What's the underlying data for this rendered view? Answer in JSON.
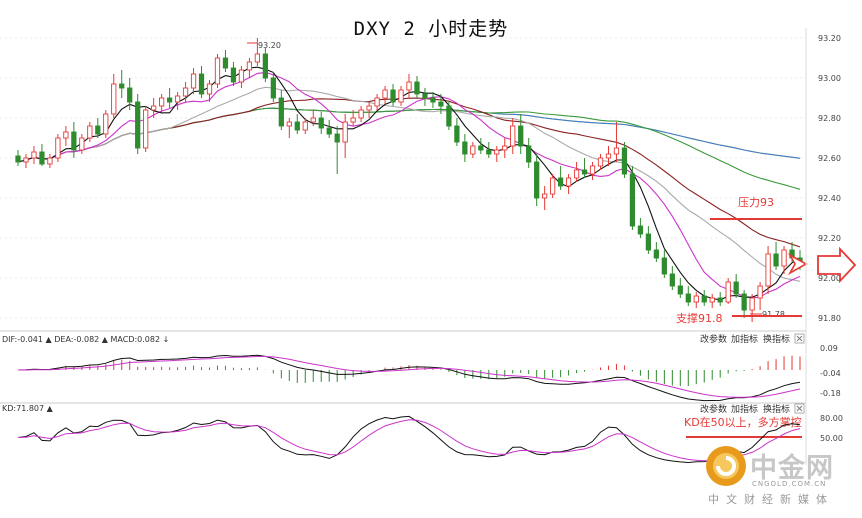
{
  "chart_data": {
    "title": "DXY 2 小时走势",
    "type": "candlestick",
    "price_axis": {
      "ticks": [
        "93.20",
        "93.00",
        "92.80",
        "92.60",
        "92.40",
        "92.20",
        "92.00",
        "91.80"
      ],
      "ylim": [
        91.75,
        93.25
      ]
    },
    "high_label": "93.20",
    "low_label": "91.78",
    "resistance": {
      "label": "压力93"
    },
    "support": {
      "label": "支撑91.8"
    },
    "candles": [
      [
        92.61,
        92.64,
        92.56,
        92.58
      ],
      [
        92.58,
        92.62,
        92.55,
        92.6
      ],
      [
        92.6,
        92.66,
        92.57,
        92.63
      ],
      [
        92.63,
        92.67,
        92.56,
        92.57
      ],
      [
        92.57,
        92.62,
        92.55,
        92.6
      ],
      [
        92.6,
        92.72,
        92.58,
        92.7
      ],
      [
        92.7,
        92.76,
        92.66,
        92.73
      ],
      [
        92.73,
        92.78,
        92.6,
        92.64
      ],
      [
        92.64,
        92.72,
        92.62,
        92.7
      ],
      [
        92.7,
        92.78,
        92.68,
        92.76
      ],
      [
        92.76,
        92.8,
        92.7,
        92.72
      ],
      [
        92.72,
        92.84,
        92.7,
        92.82
      ],
      [
        92.82,
        93.02,
        92.8,
        92.97
      ],
      [
        92.97,
        93.04,
        92.9,
        92.95
      ],
      [
        92.95,
        93.0,
        92.84,
        92.88
      ],
      [
        92.88,
        92.92,
        92.62,
        92.65
      ],
      [
        92.65,
        92.86,
        92.63,
        92.84
      ],
      [
        92.84,
        92.9,
        92.8,
        92.86
      ],
      [
        92.86,
        92.92,
        92.82,
        92.9
      ],
      [
        92.9,
        92.95,
        92.85,
        92.88
      ],
      [
        92.88,
        92.93,
        92.84,
        92.91
      ],
      [
        92.91,
        92.98,
        92.88,
        92.95
      ],
      [
        92.95,
        93.05,
        92.92,
        93.02
      ],
      [
        93.02,
        93.06,
        92.9,
        92.92
      ],
      [
        92.92,
        92.99,
        92.88,
        92.97
      ],
      [
        92.97,
        93.12,
        92.95,
        93.1
      ],
      [
        93.1,
        93.14,
        93.03,
        93.05
      ],
      [
        93.05,
        93.08,
        92.96,
        92.98
      ],
      [
        92.98,
        93.06,
        92.95,
        93.04
      ],
      [
        93.04,
        93.1,
        93.0,
        93.08
      ],
      [
        93.08,
        93.2,
        93.06,
        93.12
      ],
      [
        93.12,
        93.15,
        92.98,
        93.0
      ],
      [
        93.0,
        93.03,
        92.88,
        92.9
      ],
      [
        92.9,
        92.94,
        92.74,
        92.76
      ],
      [
        92.76,
        92.8,
        92.7,
        92.78
      ],
      [
        92.78,
        92.82,
        92.72,
        92.74
      ],
      [
        92.74,
        92.8,
        92.72,
        92.78
      ],
      [
        92.78,
        92.84,
        92.76,
        92.8
      ],
      [
        92.8,
        92.83,
        92.72,
        92.75
      ],
      [
        92.75,
        92.79,
        92.7,
        92.72
      ],
      [
        92.72,
        92.76,
        92.52,
        92.68
      ],
      [
        92.68,
        92.82,
        92.6,
        92.78
      ],
      [
        92.78,
        92.84,
        92.76,
        92.8
      ],
      [
        92.8,
        92.86,
        92.78,
        92.84
      ],
      [
        92.84,
        92.88,
        92.8,
        92.86
      ],
      [
        92.86,
        92.92,
        92.84,
        92.9
      ],
      [
        92.9,
        92.96,
        92.87,
        92.94
      ],
      [
        92.94,
        92.97,
        92.86,
        92.88
      ],
      [
        92.88,
        92.96,
        92.86,
        92.94
      ],
      [
        92.94,
        93.02,
        92.9,
        92.98
      ],
      [
        92.98,
        93.01,
        92.9,
        92.92
      ],
      [
        92.92,
        92.95,
        92.86,
        92.9
      ],
      [
        92.9,
        92.93,
        92.85,
        92.88
      ],
      [
        92.88,
        92.92,
        92.82,
        92.86
      ],
      [
        92.86,
        92.88,
        92.74,
        92.76
      ],
      [
        92.76,
        92.8,
        92.66,
        92.68
      ],
      [
        92.68,
        92.72,
        92.58,
        92.62
      ],
      [
        92.62,
        92.68,
        92.6,
        92.66
      ],
      [
        92.66,
        92.7,
        92.62,
        92.64
      ],
      [
        92.64,
        92.68,
        92.6,
        92.62
      ],
      [
        92.62,
        92.66,
        92.58,
        92.64
      ],
      [
        92.64,
        92.7,
        92.6,
        92.66
      ],
      [
        92.66,
        92.8,
        92.62,
        92.76
      ],
      [
        92.76,
        92.82,
        92.62,
        92.66
      ],
      [
        92.66,
        92.7,
        92.55,
        92.58
      ],
      [
        92.58,
        92.62,
        92.36,
        92.4
      ],
      [
        92.4,
        92.46,
        92.34,
        92.42
      ],
      [
        92.42,
        92.52,
        92.4,
        92.5
      ],
      [
        92.5,
        92.56,
        92.44,
        92.46
      ],
      [
        92.46,
        92.52,
        92.42,
        92.5
      ],
      [
        92.5,
        92.58,
        92.48,
        92.54
      ],
      [
        92.54,
        92.6,
        92.5,
        92.52
      ],
      [
        92.52,
        92.58,
        92.49,
        92.56
      ],
      [
        92.56,
        92.62,
        92.54,
        92.6
      ],
      [
        92.6,
        92.66,
        92.56,
        92.62
      ],
      [
        92.62,
        92.78,
        92.58,
        92.65
      ],
      [
        92.65,
        92.68,
        92.5,
        92.52
      ],
      [
        92.52,
        92.56,
        92.24,
        92.26
      ],
      [
        92.26,
        92.3,
        92.2,
        92.22
      ],
      [
        92.22,
        92.26,
        92.12,
        92.14
      ],
      [
        92.14,
        92.18,
        92.08,
        92.1
      ],
      [
        92.1,
        92.14,
        92.0,
        92.02
      ],
      [
        92.02,
        92.06,
        91.94,
        91.96
      ],
      [
        91.96,
        92.0,
        91.9,
        91.92
      ],
      [
        91.92,
        91.96,
        91.86,
        91.88
      ],
      [
        91.88,
        91.93,
        91.85,
        91.91
      ],
      [
        91.91,
        91.94,
        91.86,
        91.88
      ],
      [
        91.88,
        91.92,
        91.85,
        91.9
      ],
      [
        91.9,
        91.93,
        91.86,
        91.88
      ],
      [
        91.88,
        92.0,
        91.87,
        91.98
      ],
      [
        91.98,
        92.02,
        91.9,
        91.92
      ],
      [
        91.92,
        91.94,
        91.8,
        91.84
      ],
      [
        91.84,
        91.92,
        91.78,
        91.9
      ],
      [
        91.9,
        91.98,
        91.84,
        91.96
      ],
      [
        91.96,
        92.16,
        91.92,
        92.12
      ],
      [
        92.12,
        92.18,
        92.04,
        92.06
      ],
      [
        92.06,
        92.16,
        92.02,
        92.14
      ],
      [
        92.14,
        92.18,
        92.08,
        92.1
      ],
      [
        92.1,
        92.14,
        92.04,
        92.06
      ]
    ],
    "macd_panel": {
      "header": "DIF:-0.041 ▲ DEA:-0.082 ▲ MACD:0.082 ↓",
      "buttons": [
        "改参数",
        "加指标",
        "换指标"
      ],
      "ticks": [
        "0.09",
        "-0.04",
        "-0.18"
      ]
    },
    "kd_panel": {
      "header": "KD:71.807 ▲",
      "buttons": [
        "改参数",
        "加指标",
        "换指标"
      ],
      "ticks": [
        "80.00",
        "50.00"
      ],
      "annotation": "KD在50以上，多方掌控"
    }
  },
  "colors": {
    "up": "#e53935",
    "down": "#2e8b2e",
    "ma5": "#111111",
    "ma10": "#cc33cc",
    "ma20": "#aaaaaa",
    "ma30": "#8b2323",
    "ma60": "#3a9a3a",
    "ma120": "#3a7fd6",
    "ma250": "#f0b400",
    "annotation": "#e53935"
  },
  "logo": {
    "name": "中金网",
    "url": "CNGOLD.COM.CN",
    "tagline": "中文财经新媒体"
  },
  "icons": {
    "close": "close-icon",
    "arrow": "arrow-right-outline-icon"
  }
}
